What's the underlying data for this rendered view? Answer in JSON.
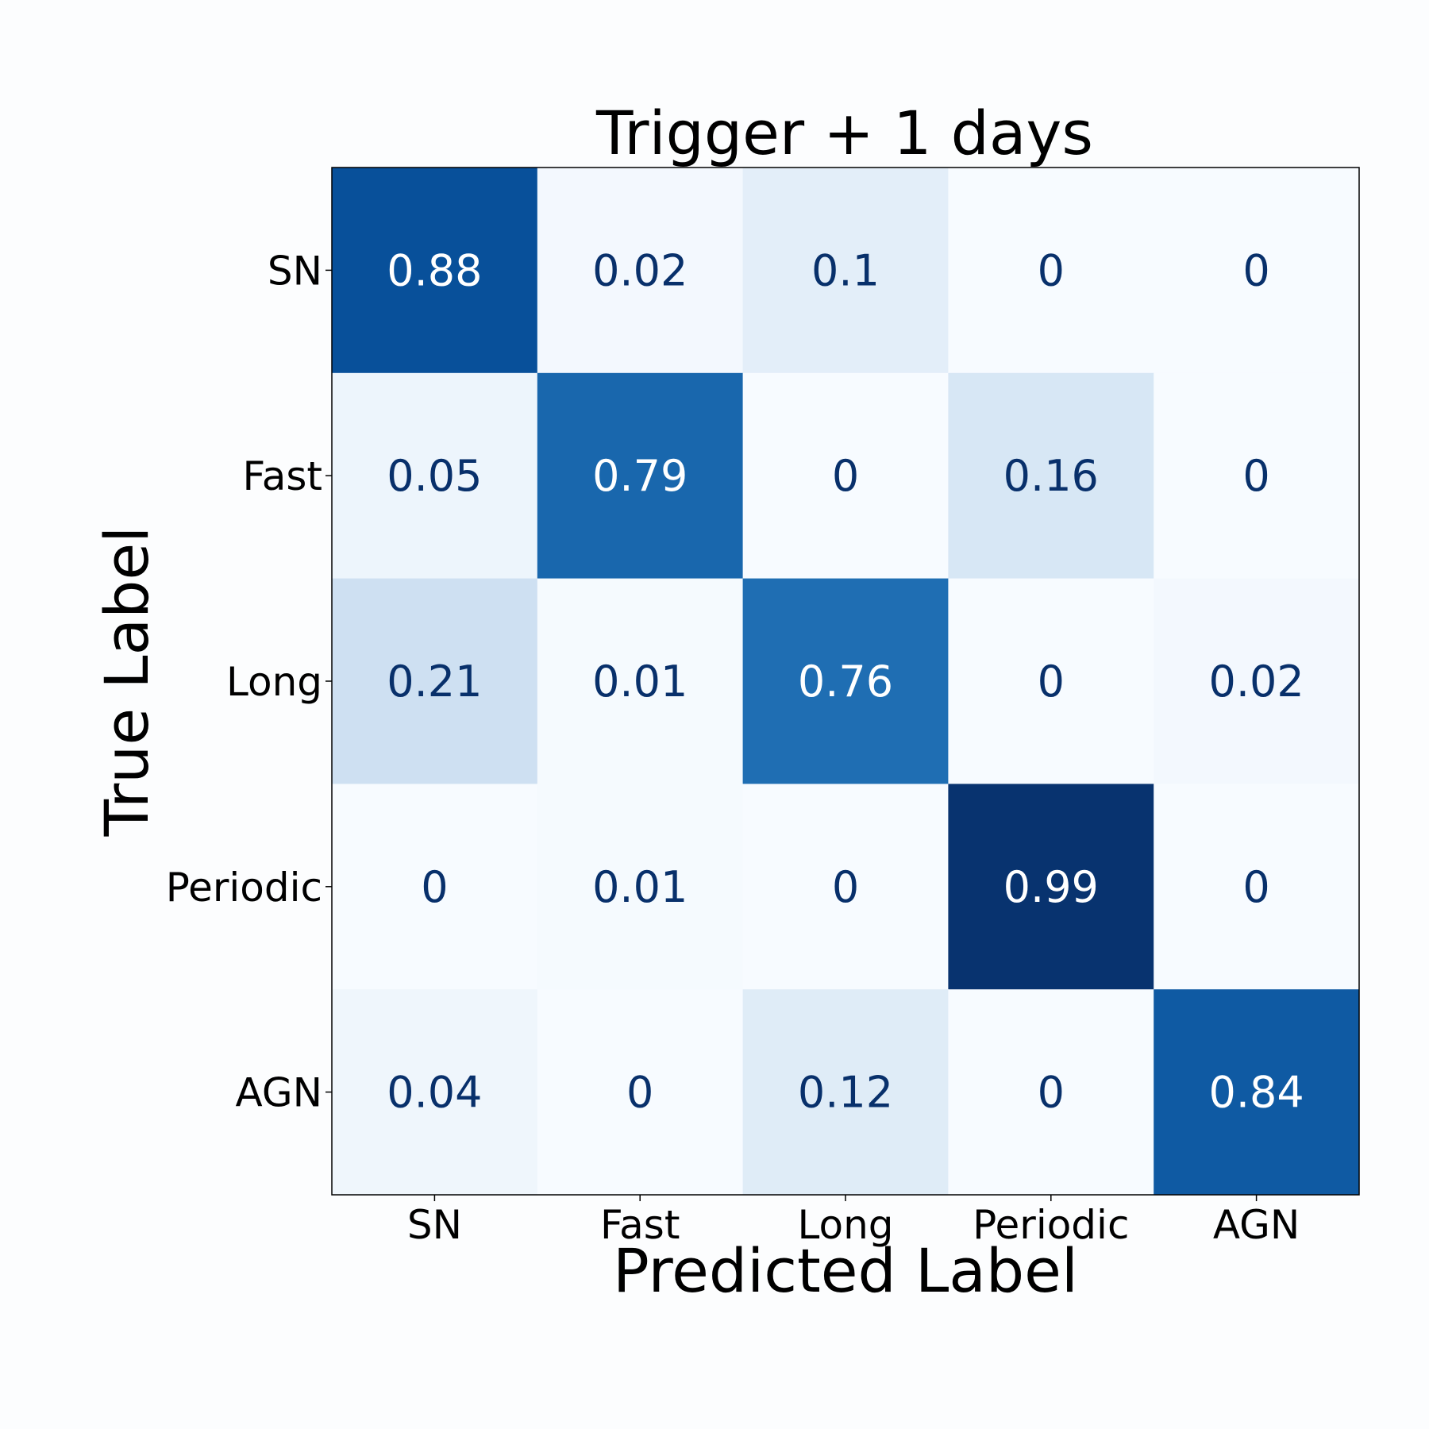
{
  "chart_data": {
    "type": "heatmap",
    "title": "Trigger + 1 days",
    "xlabel": "Predicted Label",
    "ylabel": "True Label",
    "x_categories": [
      "SN",
      "Fast",
      "Long",
      "Periodic",
      "AGN"
    ],
    "y_categories": [
      "SN",
      "Fast",
      "Long",
      "Periodic",
      "AGN"
    ],
    "values": [
      [
        0.88,
        0.02,
        0.1,
        0,
        0
      ],
      [
        0.05,
        0.79,
        0,
        0.16,
        0
      ],
      [
        0.21,
        0.01,
        0.76,
        0,
        0.02
      ],
      [
        0,
        0.01,
        0,
        0.99,
        0
      ],
      [
        0.04,
        0,
        0.12,
        0,
        0.84
      ]
    ],
    "value_labels": [
      [
        "0.88",
        "0.02",
        "0.1",
        "0",
        "0"
      ],
      [
        "0.05",
        "0.79",
        "0",
        "0.16",
        "0"
      ],
      [
        "0.21",
        "0.01",
        "0.76",
        "0",
        "0.02"
      ],
      [
        "0",
        "0.01",
        "0",
        "0.99",
        "0"
      ],
      [
        "0.04",
        "0",
        "0.12",
        "0",
        "0.84"
      ]
    ],
    "vmin": 0,
    "vmax": 1,
    "colormap": "Blues",
    "colors": {
      "low": "#f7fbff",
      "high": "#08306b",
      "text_dark": "#08306b",
      "text_light": "#ffffff"
    },
    "grid": false,
    "legend": "none"
  }
}
